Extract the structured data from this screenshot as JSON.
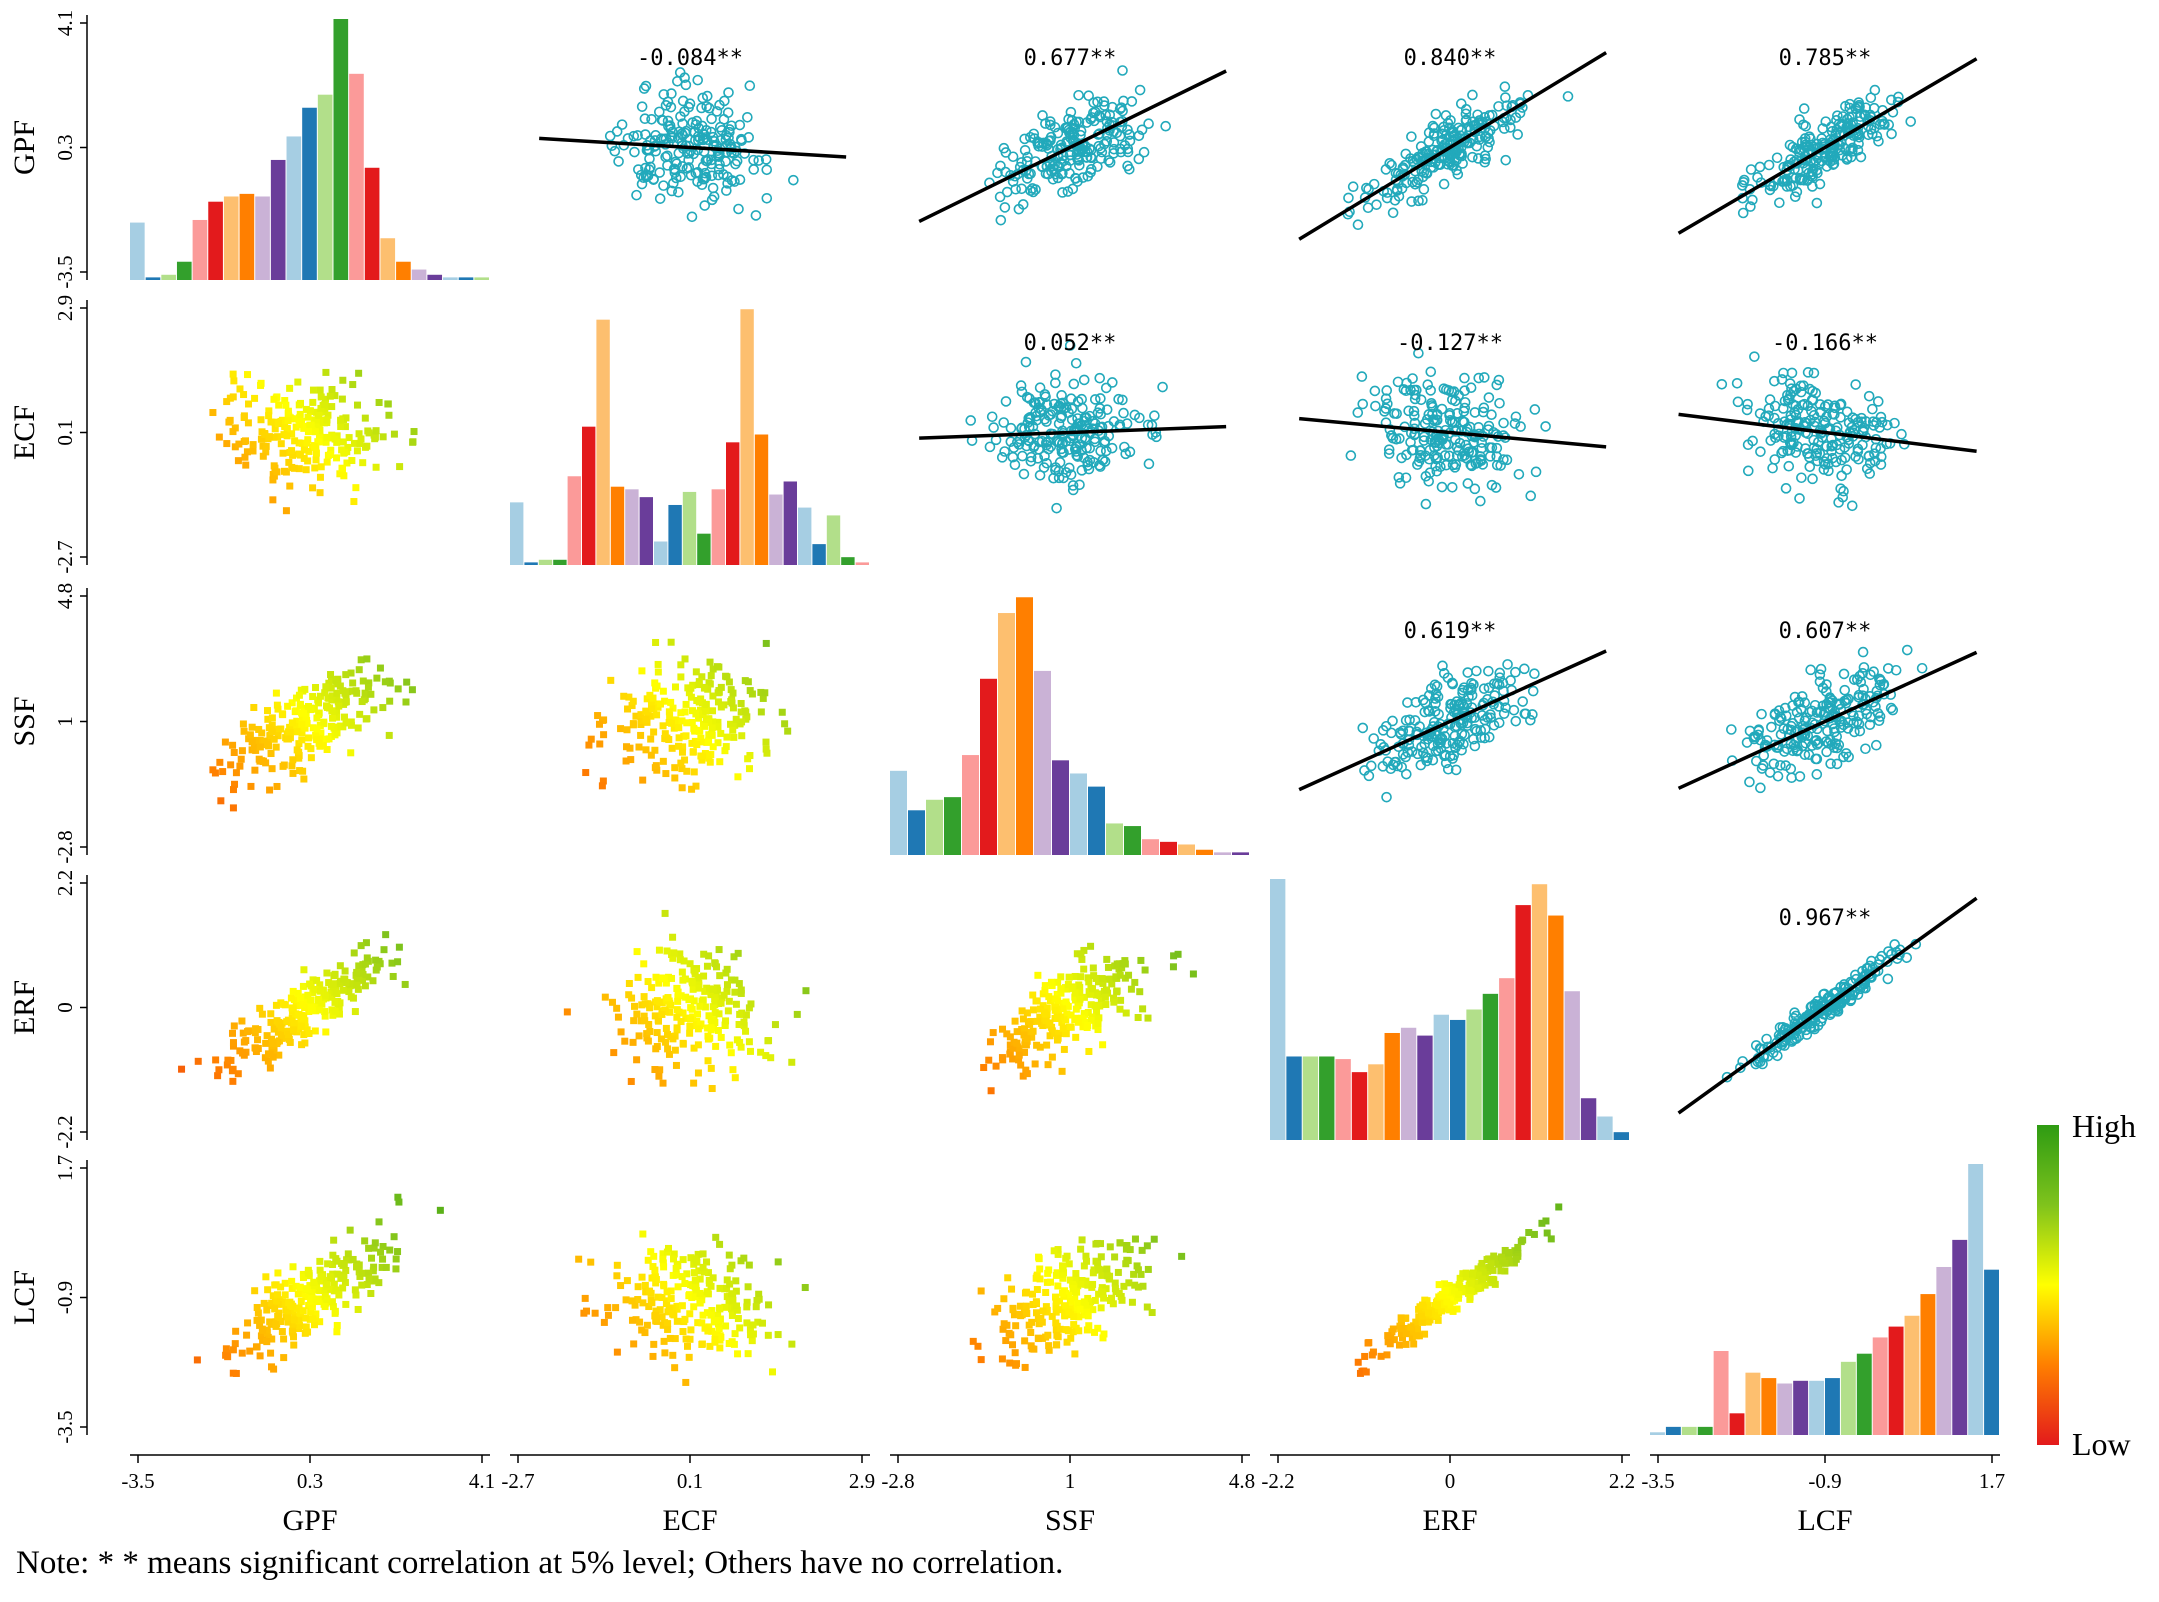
{
  "chart_data": {
    "type": "scatter-matrix",
    "variables": [
      "GPF",
      "ECF",
      "SSF",
      "ERF",
      "LCF"
    ],
    "ticks": {
      "GPF": [
        "-3.5",
        "0.3",
        "4.1"
      ],
      "ECF": [
        "-2.7",
        "0.1",
        "2.9"
      ],
      "SSF": [
        "-2.8",
        "1",
        "4.8"
      ],
      "ERF": [
        "-2.2",
        "0",
        "2.2"
      ],
      "LCF": [
        "-3.5",
        "-0.9",
        "1.7"
      ]
    },
    "ranges": {
      "GPF": [
        -3.5,
        4.1
      ],
      "ECF": [
        -2.7,
        2.9
      ],
      "SSF": [
        -2.8,
        4.8
      ],
      "ERF": [
        -2.2,
        2.2
      ],
      "LCF": [
        -3.5,
        1.7
      ]
    },
    "correlations": [
      {
        "row": "GPF",
        "col": "ECF",
        "label": "-0.084**",
        "r": -0.084
      },
      {
        "row": "GPF",
        "col": "SSF",
        "label": "0.677**",
        "r": 0.677
      },
      {
        "row": "GPF",
        "col": "ERF",
        "label": "0.840**",
        "r": 0.84
      },
      {
        "row": "GPF",
        "col": "LCF",
        "label": "0.785**",
        "r": 0.785
      },
      {
        "row": "ECF",
        "col": "SSF",
        "label": "0.052**",
        "r": 0.052
      },
      {
        "row": "ECF",
        "col": "ERF",
        "label": "-0.127**",
        "r": -0.127
      },
      {
        "row": "ECF",
        "col": "LCF",
        "label": "-0.166**",
        "r": -0.166
      },
      {
        "row": "SSF",
        "col": "ERF",
        "label": "0.619**",
        "r": 0.619
      },
      {
        "row": "SSF",
        "col": "LCF",
        "label": "0.607**",
        "r": 0.607
      },
      {
        "row": "ERF",
        "col": "LCF",
        "label": "0.967**",
        "r": 0.967
      }
    ],
    "histograms": {
      "GPF": [
        0.22,
        0.01,
        0.02,
        0.07,
        0.23,
        0.3,
        0.32,
        0.33,
        0.32,
        0.46,
        0.55,
        0.66,
        0.71,
        1.0,
        0.79,
        0.43,
        0.16,
        0.07,
        0.04,
        0.02,
        0.01,
        0.01,
        0.01
      ],
      "ECF": [
        0.24,
        0.01,
        0.02,
        0.02,
        0.34,
        0.53,
        0.94,
        0.3,
        0.29,
        0.26,
        0.09,
        0.23,
        0.28,
        0.12,
        0.29,
        0.47,
        0.98,
        0.5,
        0.27,
        0.32,
        0.22,
        0.08,
        0.19,
        0.03,
        0.01
      ],
      "SSF": [
        0.32,
        0.17,
        0.21,
        0.22,
        0.38,
        0.67,
        0.92,
        0.98,
        0.7,
        0.36,
        0.31,
        0.26,
        0.12,
        0.11,
        0.06,
        0.05,
        0.04,
        0.02,
        0.01,
        0.01
      ],
      "ERF": [
        1.0,
        0.32,
        0.32,
        0.32,
        0.31,
        0.26,
        0.29,
        0.41,
        0.43,
        0.4,
        0.48,
        0.46,
        0.5,
        0.56,
        0.62,
        0.9,
        0.98,
        0.86,
        0.57,
        0.16,
        0.09,
        0.03
      ],
      "LCF": [
        0.01,
        0.03,
        0.03,
        0.03,
        0.31,
        0.08,
        0.23,
        0.21,
        0.19,
        0.2,
        0.2,
        0.21,
        0.27,
        0.3,
        0.36,
        0.4,
        0.44,
        0.52,
        0.62,
        0.72,
        1.0,
        0.61
      ]
    },
    "color_scale": {
      "high_label": "High",
      "low_label": "Low"
    }
  },
  "colors": {
    "scatter": "#22a9bb",
    "fit_line": "#000000",
    "bar_palette": [
      "#a6cee3",
      "#1f78b4",
      "#b2df8a",
      "#33a02c",
      "#fb9a99",
      "#e31a1c",
      "#fdbf6f",
      "#ff7f00",
      "#cab2d6",
      "#6a3d9a"
    ],
    "gradient": [
      "#e31a1c",
      "#ff7f00",
      "#ffff00",
      "#7fc31c",
      "#2e9b13"
    ]
  },
  "note": "Note: * * means significant correlation at 5% level;  Others have no correlation."
}
